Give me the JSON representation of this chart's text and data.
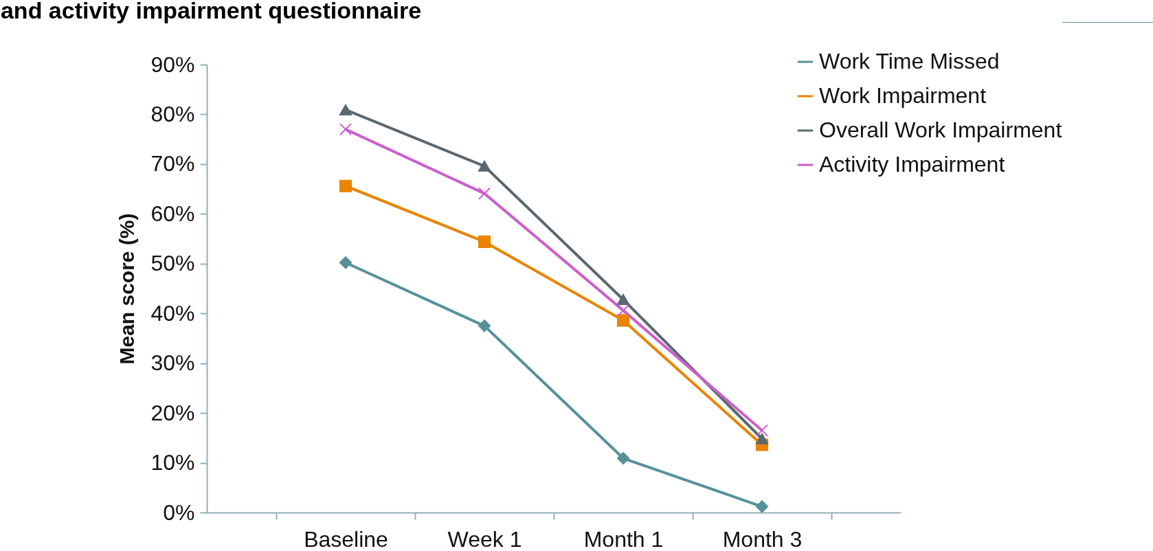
{
  "chart_data": {
    "type": "line",
    "title": "and activity impairment questionnaire",
    "ylabel": "Mean score (%)",
    "categories": [
      "Baseline",
      "Week 1",
      "Month 1",
      "Month 3"
    ],
    "series": [
      {
        "name": "Work Time Missed",
        "color": "#56919a",
        "marker": "diamond",
        "values": [
          50.2,
          37.5,
          10.9,
          1.2
        ]
      },
      {
        "name": "Work Impairment",
        "color": "#ea8400",
        "marker": "square",
        "values": [
          65.6,
          54.4,
          38.6,
          13.6
        ]
      },
      {
        "name": "Overall Work Impairment",
        "color": "#5a6870",
        "marker": "triangle",
        "values": [
          80.9,
          69.6,
          42.8,
          14.8
        ]
      },
      {
        "name": "Activity Impairment",
        "color": "#cc5fcc",
        "marker": "cross",
        "values": [
          77,
          64.1,
          40.6,
          16.5
        ]
      }
    ],
    "ylim": [
      0,
      90
    ],
    "yticks": [
      {
        "value": 0,
        "label": "0%"
      },
      {
        "value": 10,
        "label": "10%"
      },
      {
        "value": 20,
        "label": "20%"
      },
      {
        "value": 30,
        "label": "30%"
      },
      {
        "value": 40,
        "label": "40%"
      },
      {
        "value": 50,
        "label": "50%"
      },
      {
        "value": 60,
        "label": "60%"
      },
      {
        "value": 70,
        "label": "70%"
      },
      {
        "value": 80,
        "label": "80%"
      },
      {
        "value": 90,
        "label": "90%"
      }
    ],
    "grid": false,
    "legend": "top right",
    "line_style": "solid"
  }
}
